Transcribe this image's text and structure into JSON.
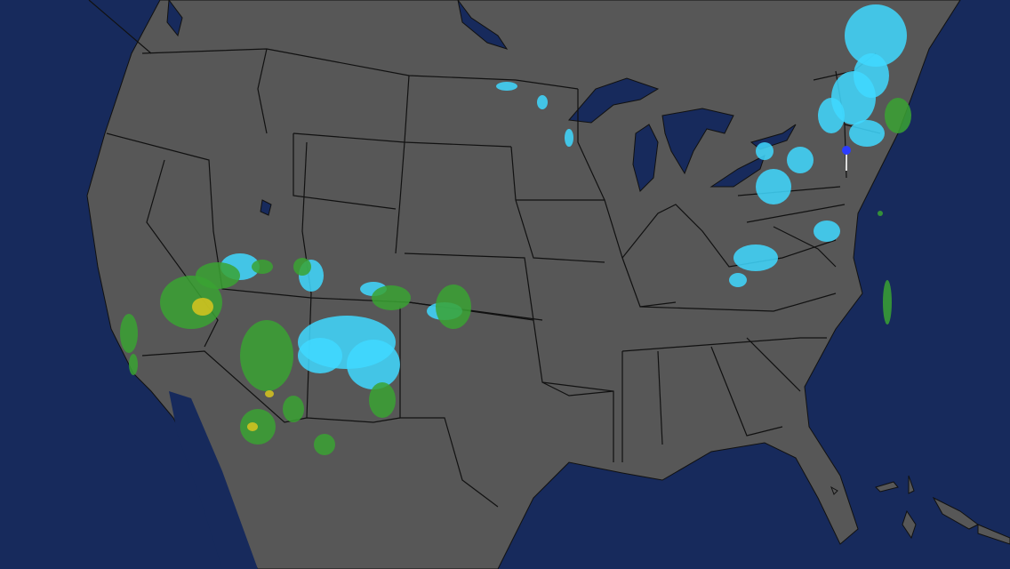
{
  "map": {
    "type": "weather-radar",
    "colors": {
      "ocean": "#172a5c",
      "land": "#575757",
      "borders": "#111111",
      "radar_light": "#3fd8ff",
      "radar_moderate": "#3aa232",
      "radar_heavy": "#d8c41e"
    },
    "marker": {
      "icon": "location-pin-icon",
      "color": "#2b3cff"
    }
  }
}
